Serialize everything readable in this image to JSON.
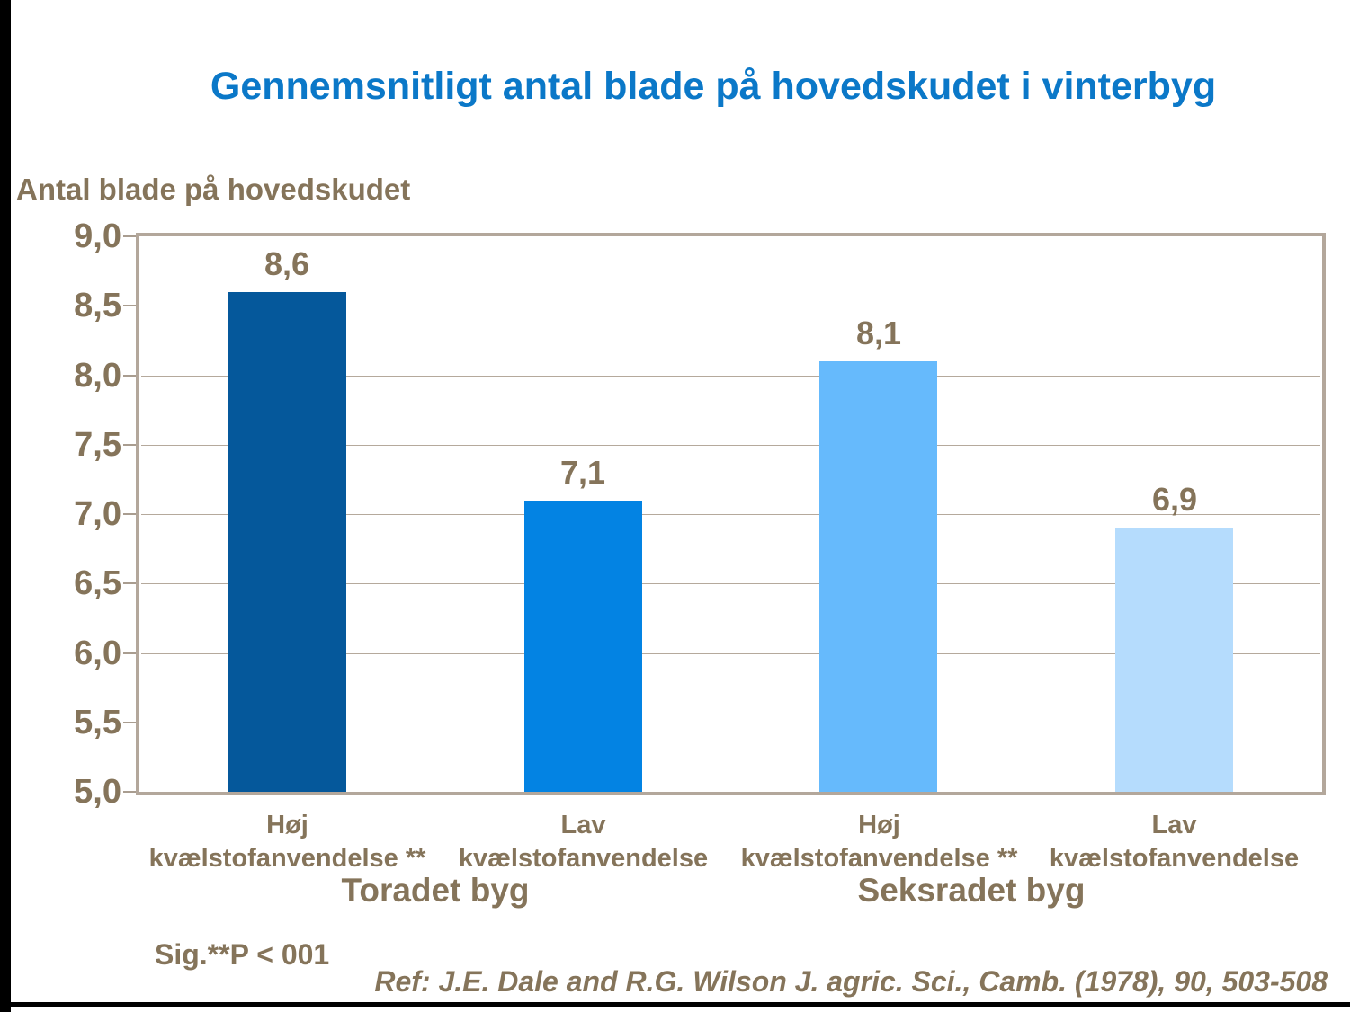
{
  "slide": {
    "title": "Gennemsnitligt antal blade på hovedskudet i vinterbyg"
  },
  "chart_data": {
    "type": "bar",
    "title": "Gennemsnitligt antal blade på hovedskudet i vinterbyg",
    "ylabel": "Antal blade på hovedskudet",
    "xlabel": "",
    "ylim": [
      5.0,
      9.0
    ],
    "ytick_values": [
      9.0,
      8.5,
      8.0,
      7.5,
      7.0,
      6.5,
      6.0,
      5.5,
      5.0
    ],
    "ytick_labels": [
      "9,0",
      "8,5",
      "8,0",
      "7,5",
      "7,0",
      "6,5",
      "6,0",
      "5,5",
      "5,0"
    ],
    "grid": true,
    "legend": "none",
    "categories": [
      {
        "line1": "Høj",
        "line2": "kvælstofanvendelse **"
      },
      {
        "line1": "Lav",
        "line2": "kvælstofanvendelse"
      },
      {
        "line1": "Høj",
        "line2": "kvælstofanvendelse **"
      },
      {
        "line1": "Lav",
        "line2": "kvælstofanvendelse"
      }
    ],
    "values": [
      8.6,
      7.1,
      8.1,
      6.9
    ],
    "value_labels": [
      "8,6",
      "7,1",
      "8,1",
      "6,9"
    ],
    "bar_colors": [
      "#05589B",
      "#0383E3",
      "#66BAFC",
      "#B5DCFD"
    ],
    "groups": [
      {
        "label": "Toradet byg"
      },
      {
        "label": "Seksradet byg"
      }
    ]
  },
  "footer": {
    "sig_note": "Sig.**P < 001",
    "reference": "Ref: J.E. Dale and R.G. Wilson J. agric. Sci., Camb. (1978), 90, 503-508"
  },
  "colors": {
    "title_blue": "#0B78C8",
    "text_brown": "#85745A",
    "frame_tan": "#B3A79B",
    "gridline": "#B5A99C",
    "border_black": "#000000"
  }
}
